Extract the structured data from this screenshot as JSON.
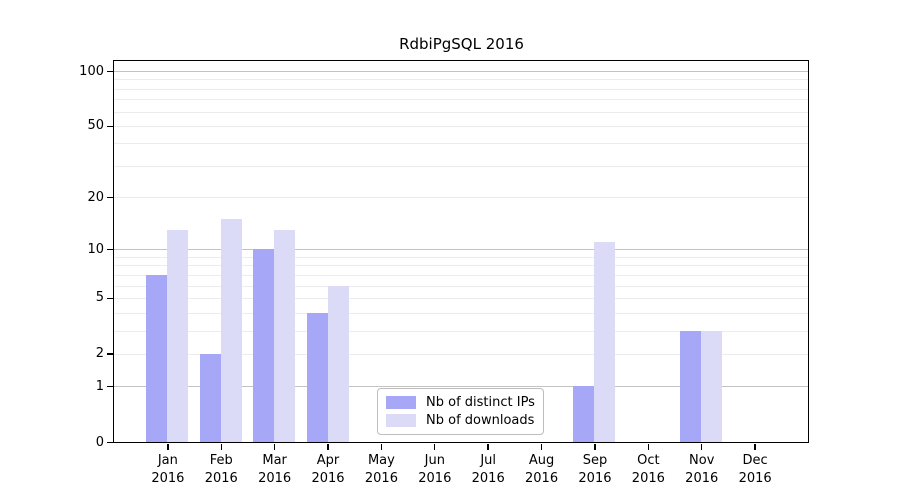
{
  "chart_data": {
    "type": "bar",
    "title": "RdbiPgSQL 2016",
    "categories": [
      "Jan",
      "Feb",
      "Mar",
      "Apr",
      "May",
      "Jun",
      "Jul",
      "Aug",
      "Sep",
      "Oct",
      "Nov",
      "Dec"
    ],
    "year_label": "2016",
    "series": [
      {
        "name": "Nb of distinct IPs",
        "color": "#a7a7f8",
        "values": [
          7,
          2,
          10,
          4,
          0,
          0,
          0,
          0,
          1,
          0,
          3,
          0
        ]
      },
      {
        "name": "Nb of downloads",
        "color": "#dbdbf8",
        "values": [
          13,
          15,
          13,
          6,
          0,
          0,
          0,
          0,
          11,
          0,
          3,
          0
        ]
      }
    ],
    "y_scale": "log10(1+value)",
    "y_ticks": [
      0,
      1,
      2,
      5,
      10,
      20,
      50,
      100
    ],
    "y_gridlines_major": [
      1,
      10,
      100
    ],
    "y_gridlines_minor": [
      2,
      3,
      4,
      5,
      6,
      7,
      8,
      9,
      20,
      30,
      40,
      50,
      60,
      70,
      80,
      90
    ],
    "ylim": [
      0,
      113
    ],
    "grid": true,
    "legend_position": "lower center",
    "colors": {
      "bar_distinct_ips": "#a7a7f8",
      "bar_downloads": "#dbdbf8",
      "gridline_major": "#c3c3c3",
      "gridline_minor": "#ececec",
      "axis_frame": "#000000",
      "text": "#000000",
      "legend_border": "#bdbdbd"
    }
  }
}
